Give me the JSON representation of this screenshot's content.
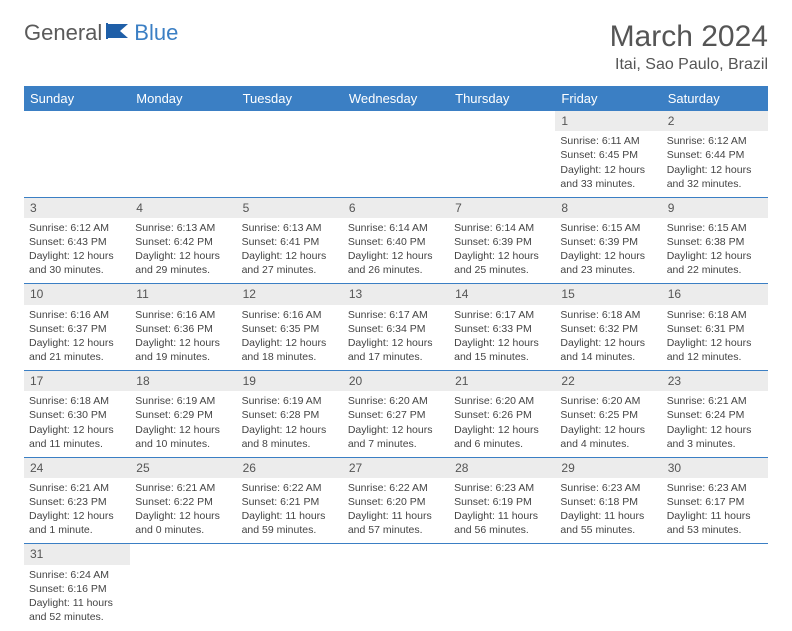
{
  "logo": {
    "part1": "General",
    "part2": "Blue"
  },
  "title": "March 2024",
  "location": "Itai, Sao Paulo, Brazil",
  "colors": {
    "header_bg": "#3b7fc4",
    "daynum_bg": "#ececec",
    "text": "#444444",
    "title": "#555555"
  },
  "weekdays": [
    "Sunday",
    "Monday",
    "Tuesday",
    "Wednesday",
    "Thursday",
    "Friday",
    "Saturday"
  ],
  "weeks": [
    {
      "nums": [
        "",
        "",
        "",
        "",
        "",
        "1",
        "2"
      ],
      "cells": [
        null,
        null,
        null,
        null,
        null,
        {
          "sr": "Sunrise: 6:11 AM",
          "ss": "Sunset: 6:45 PM",
          "d1": "Daylight: 12 hours",
          "d2": "and 33 minutes."
        },
        {
          "sr": "Sunrise: 6:12 AM",
          "ss": "Sunset: 6:44 PM",
          "d1": "Daylight: 12 hours",
          "d2": "and 32 minutes."
        }
      ]
    },
    {
      "nums": [
        "3",
        "4",
        "5",
        "6",
        "7",
        "8",
        "9"
      ],
      "cells": [
        {
          "sr": "Sunrise: 6:12 AM",
          "ss": "Sunset: 6:43 PM",
          "d1": "Daylight: 12 hours",
          "d2": "and 30 minutes."
        },
        {
          "sr": "Sunrise: 6:13 AM",
          "ss": "Sunset: 6:42 PM",
          "d1": "Daylight: 12 hours",
          "d2": "and 29 minutes."
        },
        {
          "sr": "Sunrise: 6:13 AM",
          "ss": "Sunset: 6:41 PM",
          "d1": "Daylight: 12 hours",
          "d2": "and 27 minutes."
        },
        {
          "sr": "Sunrise: 6:14 AM",
          "ss": "Sunset: 6:40 PM",
          "d1": "Daylight: 12 hours",
          "d2": "and 26 minutes."
        },
        {
          "sr": "Sunrise: 6:14 AM",
          "ss": "Sunset: 6:39 PM",
          "d1": "Daylight: 12 hours",
          "d2": "and 25 minutes."
        },
        {
          "sr": "Sunrise: 6:15 AM",
          "ss": "Sunset: 6:39 PM",
          "d1": "Daylight: 12 hours",
          "d2": "and 23 minutes."
        },
        {
          "sr": "Sunrise: 6:15 AM",
          "ss": "Sunset: 6:38 PM",
          "d1": "Daylight: 12 hours",
          "d2": "and 22 minutes."
        }
      ]
    },
    {
      "nums": [
        "10",
        "11",
        "12",
        "13",
        "14",
        "15",
        "16"
      ],
      "cells": [
        {
          "sr": "Sunrise: 6:16 AM",
          "ss": "Sunset: 6:37 PM",
          "d1": "Daylight: 12 hours",
          "d2": "and 21 minutes."
        },
        {
          "sr": "Sunrise: 6:16 AM",
          "ss": "Sunset: 6:36 PM",
          "d1": "Daylight: 12 hours",
          "d2": "and 19 minutes."
        },
        {
          "sr": "Sunrise: 6:16 AM",
          "ss": "Sunset: 6:35 PM",
          "d1": "Daylight: 12 hours",
          "d2": "and 18 minutes."
        },
        {
          "sr": "Sunrise: 6:17 AM",
          "ss": "Sunset: 6:34 PM",
          "d1": "Daylight: 12 hours",
          "d2": "and 17 minutes."
        },
        {
          "sr": "Sunrise: 6:17 AM",
          "ss": "Sunset: 6:33 PM",
          "d1": "Daylight: 12 hours",
          "d2": "and 15 minutes."
        },
        {
          "sr": "Sunrise: 6:18 AM",
          "ss": "Sunset: 6:32 PM",
          "d1": "Daylight: 12 hours",
          "d2": "and 14 minutes."
        },
        {
          "sr": "Sunrise: 6:18 AM",
          "ss": "Sunset: 6:31 PM",
          "d1": "Daylight: 12 hours",
          "d2": "and 12 minutes."
        }
      ]
    },
    {
      "nums": [
        "17",
        "18",
        "19",
        "20",
        "21",
        "22",
        "23"
      ],
      "cells": [
        {
          "sr": "Sunrise: 6:18 AM",
          "ss": "Sunset: 6:30 PM",
          "d1": "Daylight: 12 hours",
          "d2": "and 11 minutes."
        },
        {
          "sr": "Sunrise: 6:19 AM",
          "ss": "Sunset: 6:29 PM",
          "d1": "Daylight: 12 hours",
          "d2": "and 10 minutes."
        },
        {
          "sr": "Sunrise: 6:19 AM",
          "ss": "Sunset: 6:28 PM",
          "d1": "Daylight: 12 hours",
          "d2": "and 8 minutes."
        },
        {
          "sr": "Sunrise: 6:20 AM",
          "ss": "Sunset: 6:27 PM",
          "d1": "Daylight: 12 hours",
          "d2": "and 7 minutes."
        },
        {
          "sr": "Sunrise: 6:20 AM",
          "ss": "Sunset: 6:26 PM",
          "d1": "Daylight: 12 hours",
          "d2": "and 6 minutes."
        },
        {
          "sr": "Sunrise: 6:20 AM",
          "ss": "Sunset: 6:25 PM",
          "d1": "Daylight: 12 hours",
          "d2": "and 4 minutes."
        },
        {
          "sr": "Sunrise: 6:21 AM",
          "ss": "Sunset: 6:24 PM",
          "d1": "Daylight: 12 hours",
          "d2": "and 3 minutes."
        }
      ]
    },
    {
      "nums": [
        "24",
        "25",
        "26",
        "27",
        "28",
        "29",
        "30"
      ],
      "cells": [
        {
          "sr": "Sunrise: 6:21 AM",
          "ss": "Sunset: 6:23 PM",
          "d1": "Daylight: 12 hours",
          "d2": "and 1 minute."
        },
        {
          "sr": "Sunrise: 6:21 AM",
          "ss": "Sunset: 6:22 PM",
          "d1": "Daylight: 12 hours",
          "d2": "and 0 minutes."
        },
        {
          "sr": "Sunrise: 6:22 AM",
          "ss": "Sunset: 6:21 PM",
          "d1": "Daylight: 11 hours",
          "d2": "and 59 minutes."
        },
        {
          "sr": "Sunrise: 6:22 AM",
          "ss": "Sunset: 6:20 PM",
          "d1": "Daylight: 11 hours",
          "d2": "and 57 minutes."
        },
        {
          "sr": "Sunrise: 6:23 AM",
          "ss": "Sunset: 6:19 PM",
          "d1": "Daylight: 11 hours",
          "d2": "and 56 minutes."
        },
        {
          "sr": "Sunrise: 6:23 AM",
          "ss": "Sunset: 6:18 PM",
          "d1": "Daylight: 11 hours",
          "d2": "and 55 minutes."
        },
        {
          "sr": "Sunrise: 6:23 AM",
          "ss": "Sunset: 6:17 PM",
          "d1": "Daylight: 11 hours",
          "d2": "and 53 minutes."
        }
      ]
    },
    {
      "nums": [
        "31",
        "",
        "",
        "",
        "",
        "",
        ""
      ],
      "cells": [
        {
          "sr": "Sunrise: 6:24 AM",
          "ss": "Sunset: 6:16 PM",
          "d1": "Daylight: 11 hours",
          "d2": "and 52 minutes."
        },
        null,
        null,
        null,
        null,
        null,
        null
      ]
    }
  ]
}
